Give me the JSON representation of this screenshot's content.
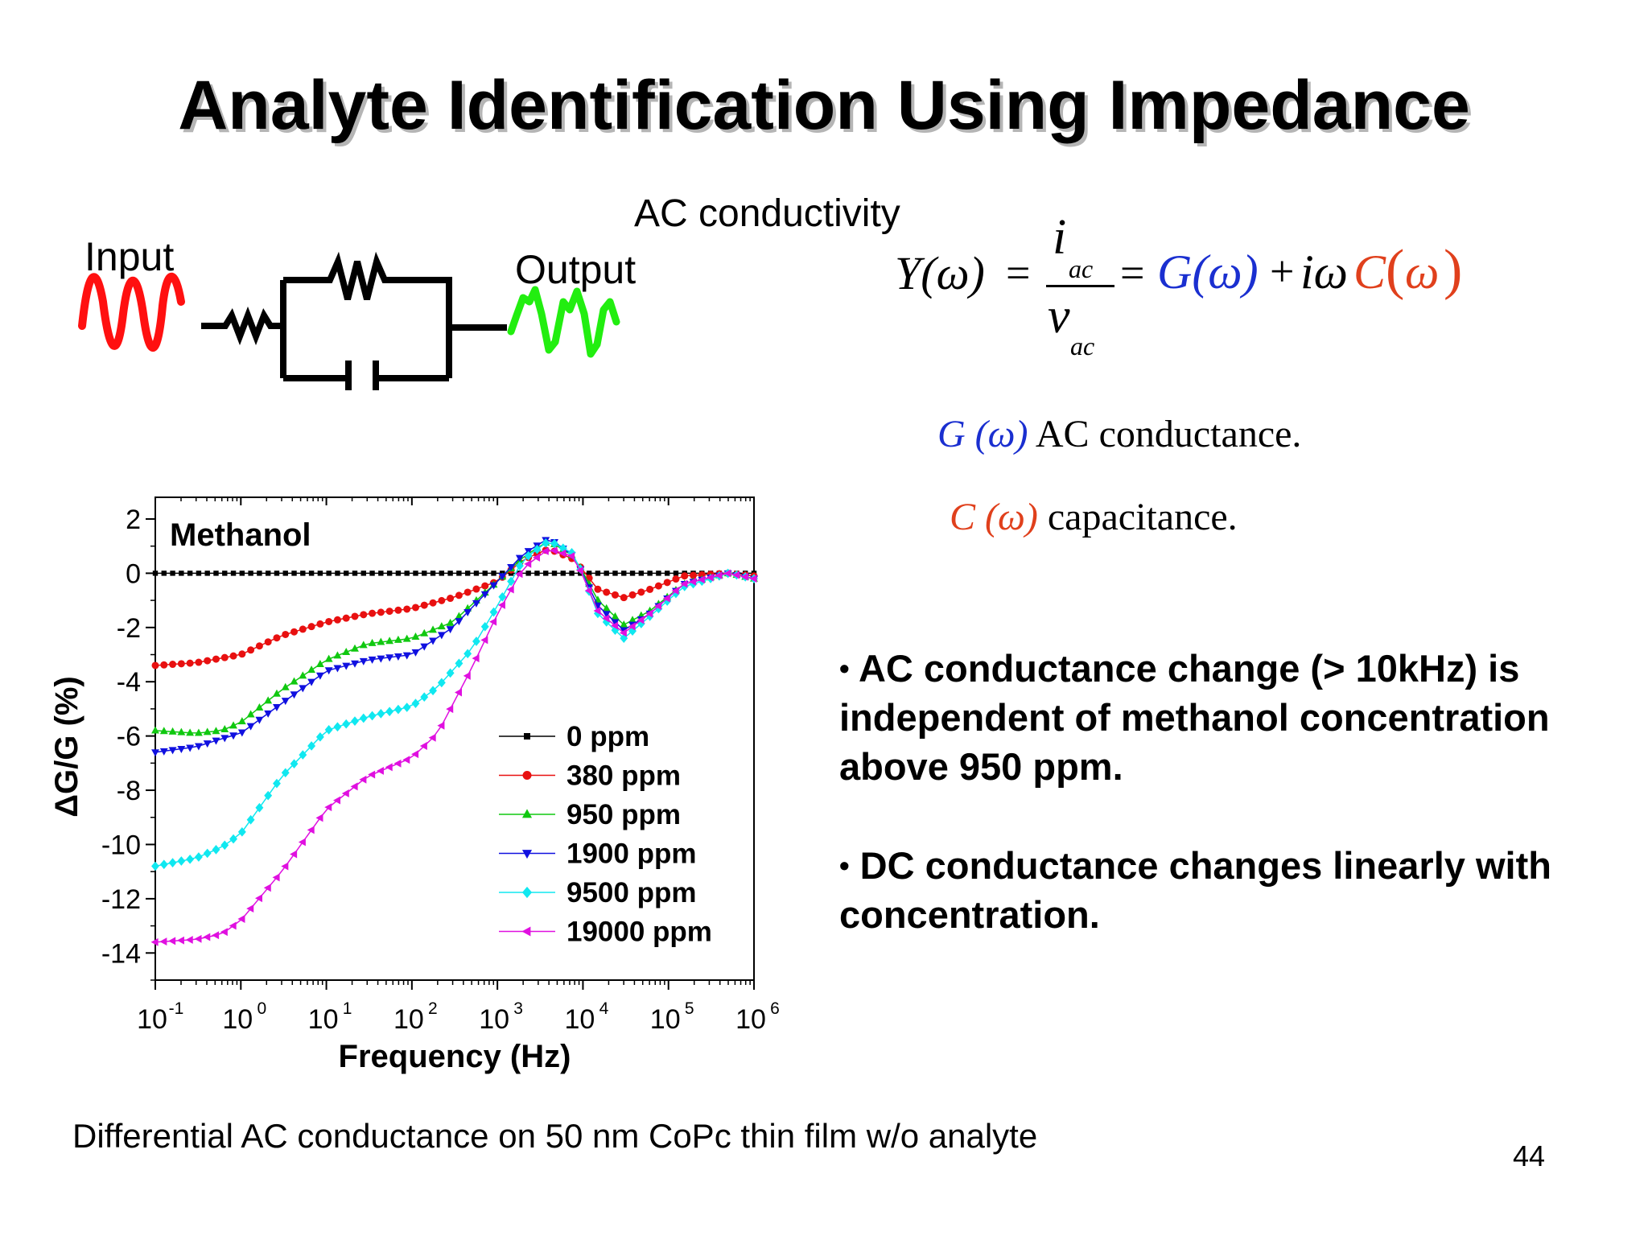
{
  "slide": {
    "title": "Analyte Identification Using Impedance",
    "ac_conductivity_label": "AC conductivity",
    "circuit": {
      "input_label": "Input",
      "output_label": "Output",
      "input_wave_color": "#ff1010",
      "output_wave_color": "#22ee10"
    },
    "equation": {
      "lhs": "Y(ω)",
      "eq1": "=",
      "numerator": "i",
      "numerator_sub": "ac",
      "denominator": "v",
      "denominator_sub": "ac",
      "eq2": "=",
      "g_term": "G(ω)",
      "plus": "+",
      "i_omega": "iω",
      "c_term": "C",
      "c_arg": "ω"
    },
    "definitions": {
      "g_symbol": "G (ω)",
      "g_text": " AC conductance.",
      "c_symbol": "C (ω)",
      "c_text": " capacitance."
    },
    "bullets": [
      "AC conductance change (> 10kHz) is independent of methanol concentration above 950 ppm.",
      "DC conductance changes linearly with concentration."
    ],
    "caption": "Differential AC conductance on 50 nm CoPc thin film w/o analyte",
    "page_number": "44"
  },
  "chart_data": {
    "type": "line",
    "annotation": "Methanol",
    "xlabel": "Frequency (Hz)",
    "ylabel": "ΔG/G (%)",
    "x_scale": "log",
    "xlim": [
      0.1,
      1000000
    ],
    "ylim": [
      -15,
      2.8
    ],
    "x_ticks": [
      0.1,
      1,
      10,
      100,
      1000,
      10000,
      100000,
      1000000
    ],
    "x_tick_labels": [
      [
        "10",
        "-1"
      ],
      [
        "10",
        "0"
      ],
      [
        "10",
        "1"
      ],
      [
        "10",
        "2"
      ],
      [
        "10",
        "3"
      ],
      [
        "10",
        "4"
      ],
      [
        "10",
        "5"
      ],
      [
        "10",
        "6"
      ]
    ],
    "y_ticks": [
      2,
      0,
      -2,
      -4,
      -6,
      -8,
      -10,
      -12,
      -14
    ],
    "y_tick_labels": [
      "2",
      "0",
      "-2",
      "-4",
      "-6",
      "-8",
      "-10",
      "-12",
      "-14"
    ],
    "grid": false,
    "legend_position": "lower-right",
    "series": [
      {
        "name": "0 ppm",
        "color": "#000000",
        "marker": "square",
        "x": [
          0.1,
          1000000
        ],
        "y": [
          0,
          0
        ]
      },
      {
        "name": "380 ppm",
        "color": "#e81010",
        "marker": "circle",
        "x": [
          0.1,
          0.3,
          1,
          3,
          10,
          30,
          100,
          300,
          1000,
          2000,
          4000,
          8000,
          15000,
          30000,
          60000,
          150000,
          500000,
          1000000
        ],
        "y": [
          -3.4,
          -3.3,
          -3.0,
          -2.3,
          -1.8,
          -1.5,
          -1.3,
          -0.9,
          -0.3,
          0.5,
          0.9,
          0.5,
          -0.6,
          -0.9,
          -0.6,
          -0.1,
          0.0,
          -0.1
        ]
      },
      {
        "name": "950 ppm",
        "color": "#10c810",
        "marker": "triangle-up",
        "x": [
          0.1,
          0.3,
          0.6,
          1,
          3,
          10,
          30,
          100,
          300,
          1000,
          2000,
          4000,
          8000,
          15000,
          30000,
          60000,
          150000,
          500000,
          1000000
        ],
        "y": [
          -5.8,
          -5.9,
          -5.8,
          -5.5,
          -4.3,
          -3.2,
          -2.6,
          -2.4,
          -1.8,
          -0.3,
          0.6,
          1.2,
          0.6,
          -1.0,
          -1.9,
          -1.4,
          -0.4,
          0.0,
          -0.2
        ]
      },
      {
        "name": "1900 ppm",
        "color": "#1010e0",
        "marker": "triangle-down",
        "x": [
          0.1,
          0.3,
          0.6,
          1,
          3,
          10,
          30,
          100,
          300,
          1000,
          2000,
          4000,
          8000,
          15000,
          30000,
          60000,
          150000,
          500000,
          1000000
        ],
        "y": [
          -6.6,
          -6.4,
          -6.1,
          -5.9,
          -4.8,
          -3.6,
          -3.2,
          -3.0,
          -2.0,
          -0.3,
          0.7,
          1.3,
          0.6,
          -1.2,
          -2.1,
          -1.5,
          -0.4,
          0.0,
          -0.2
        ]
      },
      {
        "name": "9500 ppm",
        "color": "#10e8f0",
        "marker": "diamond",
        "x": [
          0.1,
          0.3,
          0.6,
          1,
          3,
          10,
          30,
          100,
          200,
          500,
          1000,
          2000,
          4000,
          8000,
          15000,
          30000,
          60000,
          150000,
          500000,
          1000000
        ],
        "y": [
          -10.8,
          -10.5,
          -10.1,
          -9.6,
          -7.5,
          -5.8,
          -5.3,
          -4.9,
          -4.2,
          -2.8,
          -1.2,
          0.5,
          1.2,
          0.7,
          -1.5,
          -2.4,
          -1.6,
          -0.5,
          0.0,
          -0.2
        ]
      },
      {
        "name": "19000 ppm",
        "color": "#e010e0",
        "marker": "triangle-left",
        "x": [
          0.1,
          0.3,
          0.6,
          1,
          3,
          10,
          30,
          100,
          200,
          500,
          1000,
          2000,
          4000,
          8000,
          15000,
          30000,
          60000,
          150000,
          500000,
          1000000
        ],
        "y": [
          -13.6,
          -13.5,
          -13.3,
          -12.8,
          -11.0,
          -8.7,
          -7.5,
          -6.8,
          -5.9,
          -3.5,
          -1.5,
          0.2,
          0.9,
          0.6,
          -1.4,
          -2.2,
          -1.5,
          -0.4,
          0.0,
          -0.2
        ]
      }
    ]
  }
}
